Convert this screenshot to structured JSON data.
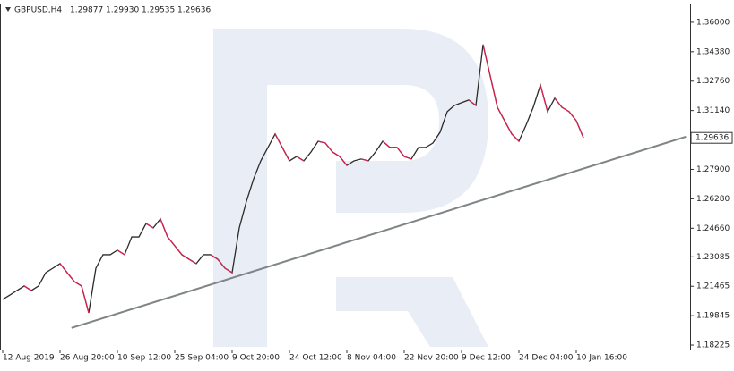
{
  "chart_data": {
    "type": "line",
    "header": {
      "symbol": "GBPUSD,H4",
      "quote": [
        "1.29877",
        "1.29930",
        "1.29535",
        "1.29636"
      ]
    },
    "categories": [
      "12 Aug 2019",
      null,
      null,
      null,
      null,
      null,
      null,
      null,
      "26 Aug 20:00",
      null,
      null,
      null,
      null,
      null,
      null,
      null,
      "10 Sep 12:00",
      null,
      null,
      null,
      null,
      null,
      null,
      null,
      "25 Sep 04:00",
      null,
      null,
      null,
      null,
      null,
      null,
      null,
      "9 Oct 20:00",
      null,
      null,
      null,
      null,
      null,
      null,
      null,
      "24 Oct 12:00",
      null,
      null,
      null,
      null,
      null,
      null,
      null,
      "8 Nov 04:00",
      null,
      null,
      null,
      null,
      null,
      null,
      null,
      "22 Nov 20:00",
      null,
      null,
      null,
      null,
      null,
      null,
      null,
      "9 Dec 12:00",
      null,
      null,
      null,
      null,
      null,
      null,
      null,
      "24 Dec 04:00",
      null,
      null,
      null,
      null,
      null,
      null,
      null,
      "10 Jan 16:00",
      null
    ],
    "values": [
      1.2074,
      1.2098,
      1.2123,
      1.2148,
      1.2123,
      1.2148,
      1.2221,
      1.2246,
      1.2271,
      1.2221,
      1.2172,
      1.2148,
      1.2,
      1.2246,
      1.232,
      1.232,
      1.2345,
      1.232,
      1.2418,
      1.2418,
      1.2492,
      1.2468,
      1.2517,
      1.2418,
      1.2369,
      1.232,
      1.2295,
      1.2271,
      1.232,
      1.232,
      1.2295,
      1.2246,
      1.2221,
      1.2468,
      1.2615,
      1.2738,
      1.2837,
      1.2911,
      1.2985,
      1.2911,
      1.2837,
      1.2861,
      1.2837,
      1.2886,
      1.2945,
      1.2935,
      1.2886,
      1.2861,
      1.2812,
      1.2837,
      1.2847,
      1.2837,
      1.2886,
      1.2945,
      1.2911,
      1.2911,
      1.2861,
      1.2847,
      1.2911,
      1.2911,
      1.2935,
      1.2994,
      1.3108,
      1.3142,
      1.3157,
      1.3172,
      1.3142,
      1.3477,
      1.3305,
      1.3132,
      1.3058,
      1.2985,
      1.2945,
      1.3034,
      1.3132,
      1.3255,
      1.3108,
      1.3182,
      1.3132,
      1.3108,
      1.3058,
      1.2964
    ],
    "color": "#2b2b2b",
    "ylim": [
      1.1798,
      1.3703
    ],
    "yticks": [
      {
        "value": 1.36,
        "label": "1.36000"
      },
      {
        "value": 1.3438,
        "label": "1.34380"
      },
      {
        "value": 1.3276,
        "label": "1.32760"
      },
      {
        "value": 1.3114,
        "label": "1.31140"
      },
      {
        "value": 1.279,
        "label": "1.27900"
      },
      {
        "value": 1.2628,
        "label": "1.26280"
      },
      {
        "value": 1.2466,
        "label": "1.24660"
      },
      1.23085,
      1.21465,
      1.19845,
      1.18225
    ],
    "current_price": {
      "value": 1.29636,
      "label": "1.29636"
    },
    "trendline": {
      "x": [
        9.6,
        95.3
      ],
      "y": [
        1.1917,
        1.297
      ],
      "color": "#7f8487"
    }
  }
}
